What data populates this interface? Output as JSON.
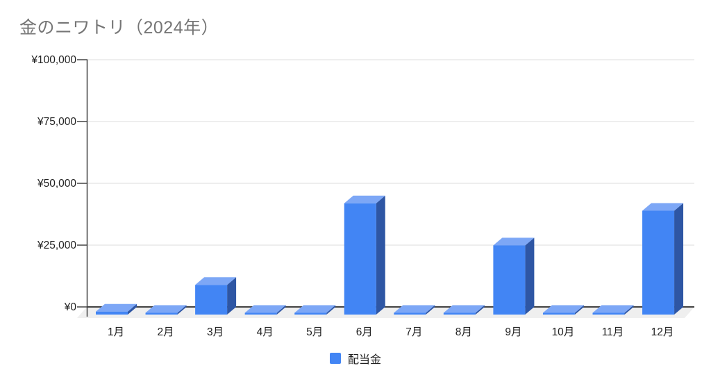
{
  "title": "金のニワトリ（2024年）",
  "legend": {
    "label": "配当金",
    "color": "#4285f4"
  },
  "chart_data": {
    "type": "bar",
    "style": "3d-column",
    "title": "金のニワトリ（2024年）",
    "categories": [
      "1月",
      "2月",
      "3月",
      "4月",
      "5月",
      "6月",
      "7月",
      "8月",
      "9月",
      "10月",
      "11月",
      "12月"
    ],
    "series": [
      {
        "name": "配当金",
        "values": [
          1200,
          0,
          12000,
          0,
          0,
          45000,
          0,
          0,
          28000,
          0,
          0,
          42000
        ]
      }
    ],
    "xlabel": "",
    "ylabel": "",
    "ylim": [
      0,
      100000
    ],
    "ytick_step": 25000,
    "ytick_labels": [
      "¥0",
      "¥25,000",
      "¥50,000",
      "¥75,000",
      "¥100,000"
    ],
    "grid": true,
    "legend_position": "bottom",
    "colors": {
      "bar_front": "#4285f4",
      "bar_top": "#7da7f6",
      "bar_side": "#2e56a4",
      "floor": "#efefef",
      "gridline": "#e3e3e3",
      "axis": "#424242",
      "title": "#757575",
      "label": "#222222"
    }
  }
}
